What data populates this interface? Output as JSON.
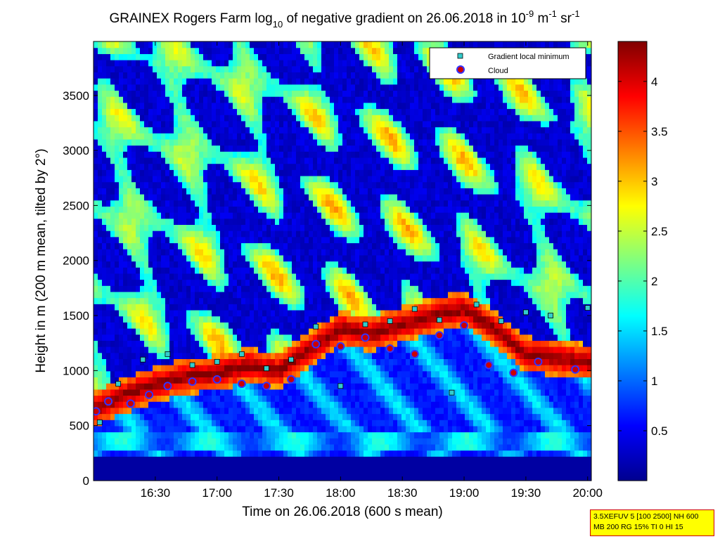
{
  "chart_data": {
    "type": "heatmap",
    "title": {
      "prefix": "GRAINEX Rogers Farm log",
      "sub": "10",
      "middle": " of negative gradient on 26.06.2018 in 10",
      "sup1": "-9",
      "mid2": " m",
      "sup2": "-1",
      "mid3": " sr",
      "sup3": "-1"
    },
    "xlabel": "Time on 26.06.2018 (600 s mean)",
    "ylabel": "Height in m (200 m mean, tilted by 2°)",
    "x_ticks": [
      "16:30",
      "17:00",
      "17:30",
      "18:00",
      "18:30",
      "19:00",
      "19:30",
      "20:00"
    ],
    "x_tick_hours": [
      16.5,
      17.0,
      17.5,
      18.0,
      18.5,
      19.0,
      19.5,
      20.0
    ],
    "xlim": [
      16.0,
      20.03
    ],
    "y_ticks": [
      0,
      500,
      1000,
      1500,
      2000,
      2500,
      3000,
      3500
    ],
    "ylim": [
      0,
      3990
    ],
    "colorbar": {
      "range": [
        0,
        4.4
      ],
      "ticks": [
        0.5,
        1,
        1.5,
        2,
        2.5,
        3,
        3.5,
        4
      ],
      "tick_labels": [
        "0.5",
        "1",
        "1.5",
        "2",
        "2.5",
        "3",
        "3.5",
        "4"
      ],
      "colormap": "jet"
    },
    "legend": {
      "placement": "top-right",
      "entries": [
        {
          "label": "Gradient local minimum",
          "marker": "square",
          "color": "#33cccc"
        },
        {
          "label": "Cloud",
          "marker": "circle",
          "color": "#cc0000",
          "edge": "#3333ff"
        }
      ]
    },
    "boundary_layer_top_m": [
      [
        16.0,
        640
      ],
      [
        16.25,
        780
      ],
      [
        16.5,
        880
      ],
      [
        16.75,
        950
      ],
      [
        17.0,
        980
      ],
      [
        17.25,
        1050
      ],
      [
        17.5,
        1000
      ],
      [
        17.75,
        1200
      ],
      [
        18.0,
        1380
      ],
      [
        18.25,
        1340
      ],
      [
        18.5,
        1420
      ],
      [
        18.75,
        1500
      ],
      [
        19.0,
        1560
      ],
      [
        19.25,
        1380
      ],
      [
        19.5,
        1150
      ],
      [
        20.0,
        1080
      ]
    ],
    "cloud_points_m": [
      [
        16.02,
        630
      ],
      [
        16.12,
        720
      ],
      [
        16.3,
        700
      ],
      [
        16.45,
        780
      ],
      [
        16.6,
        860
      ],
      [
        16.8,
        900
      ],
      [
        17.0,
        920
      ],
      [
        17.2,
        880
      ],
      [
        17.4,
        860
      ],
      [
        17.6,
        920
      ],
      [
        17.8,
        1240
      ],
      [
        18.0,
        1220
      ],
      [
        18.2,
        1300
      ],
      [
        18.4,
        1200
      ],
      [
        18.6,
        1150
      ],
      [
        18.8,
        1320
      ],
      [
        19.0,
        1410
      ],
      [
        19.2,
        1050
      ],
      [
        19.4,
        980
      ],
      [
        19.6,
        1080
      ],
      [
        19.9,
        1010
      ]
    ],
    "gradient_min_points_m": [
      [
        16.05,
        530
      ],
      [
        16.2,
        880
      ],
      [
        16.4,
        1100
      ],
      [
        16.6,
        1150
      ],
      [
        16.8,
        1050
      ],
      [
        17.0,
        1080
      ],
      [
        17.2,
        1150
      ],
      [
        17.4,
        1020
      ],
      [
        17.6,
        1100
      ],
      [
        17.8,
        1400
      ],
      [
        18.0,
        860
      ],
      [
        18.2,
        1420
      ],
      [
        18.4,
        1450
      ],
      [
        18.6,
        1560
      ],
      [
        18.8,
        1460
      ],
      [
        18.9,
        800
      ],
      [
        19.1,
        1600
      ],
      [
        19.3,
        1450
      ],
      [
        19.5,
        1530
      ],
      [
        19.7,
        1500
      ],
      [
        20.0,
        1570
      ]
    ]
  },
  "info_box": {
    "line1": "3.5XEFUV 5 [100 2500] NH 600",
    "line2": "MB 200 RG 15% TI 0 HI 15"
  }
}
